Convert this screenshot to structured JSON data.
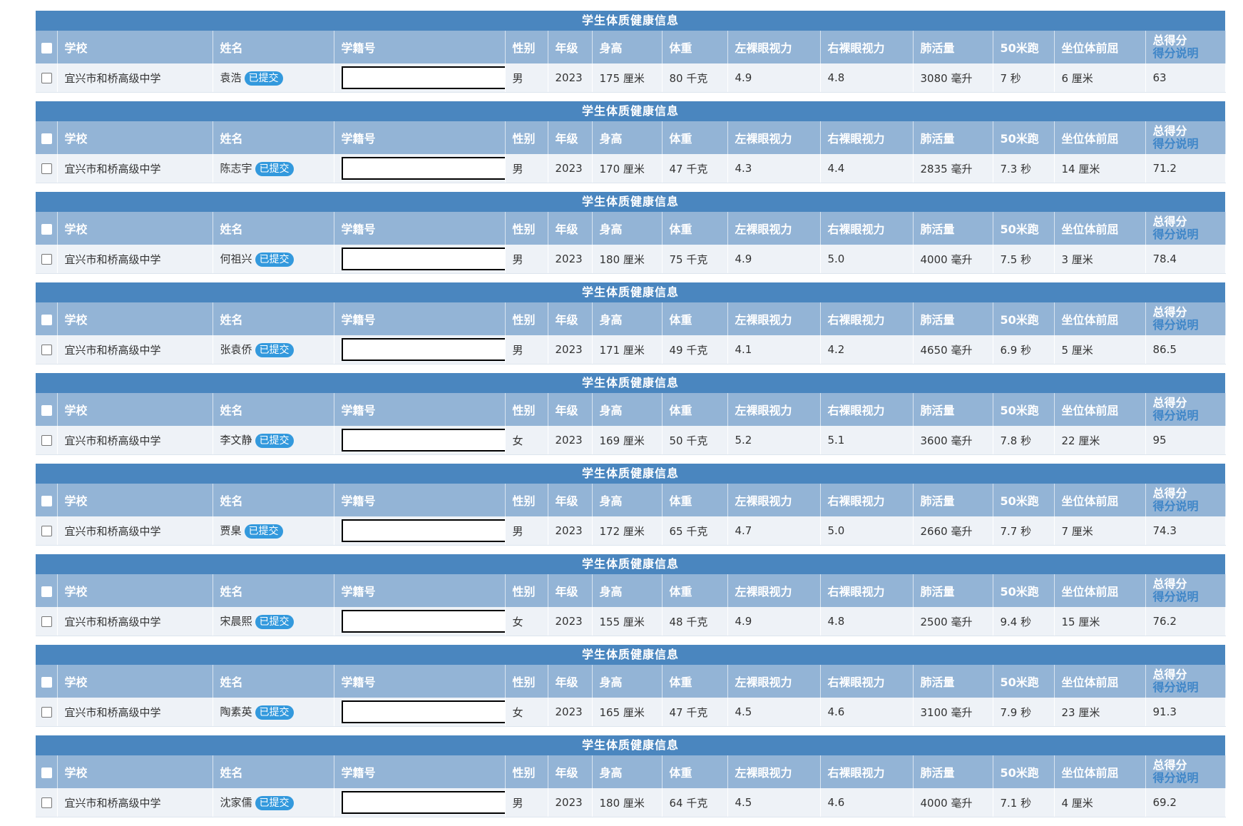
{
  "section_title": "学生体质健康信息",
  "columns": {
    "school": "学校",
    "name": "姓名",
    "student_id": "学籍号",
    "gender": "性别",
    "grade": "年级",
    "height": "身高",
    "weight": "体重",
    "left_vision": "左裸眼视力",
    "right_vision": "右裸眼视力",
    "lung_capacity": "肺活量",
    "run50": "50米跑",
    "sit_reach": "坐位体前屈",
    "total_score": "总得分",
    "score_note": "得分说明"
  },
  "status_label": "已提交",
  "students": [
    {
      "school": "宜兴市和桥高级中学",
      "name": "袁浩",
      "gender": "男",
      "grade": "2023",
      "height": "175 厘米",
      "weight": "80 千克",
      "left_vision": "4.9",
      "right_vision": "4.8",
      "lung_capacity": "3080 毫升",
      "run50": "7 秒",
      "sit_reach": "6 厘米",
      "score": "63"
    },
    {
      "school": "宜兴市和桥高级中学",
      "name": "陈志宇",
      "gender": "男",
      "grade": "2023",
      "height": "170 厘米",
      "weight": "47 千克",
      "left_vision": "4.3",
      "right_vision": "4.4",
      "lung_capacity": "2835 毫升",
      "run50": "7.3 秒",
      "sit_reach": "14 厘米",
      "score": "71.2"
    },
    {
      "school": "宜兴市和桥高级中学",
      "name": "何祖兴",
      "gender": "男",
      "grade": "2023",
      "height": "180 厘米",
      "weight": "75 千克",
      "left_vision": "4.9",
      "right_vision": "5.0",
      "lung_capacity": "4000 毫升",
      "run50": "7.5 秒",
      "sit_reach": "3 厘米",
      "score": "78.4"
    },
    {
      "school": "宜兴市和桥高级中学",
      "name": "张袁侨",
      "gender": "男",
      "grade": "2023",
      "height": "171 厘米",
      "weight": "49 千克",
      "left_vision": "4.1",
      "right_vision": "4.2",
      "lung_capacity": "4650 毫升",
      "run50": "6.9 秒",
      "sit_reach": "5 厘米",
      "score": "86.5"
    },
    {
      "school": "宜兴市和桥高级中学",
      "name": "李文静",
      "gender": "女",
      "grade": "2023",
      "height": "169 厘米",
      "weight": "50 千克",
      "left_vision": "5.2",
      "right_vision": "5.1",
      "lung_capacity": "3600 毫升",
      "run50": "7.8 秒",
      "sit_reach": "22 厘米",
      "score": "95"
    },
    {
      "school": "宜兴市和桥高级中学",
      "name": "贾臬",
      "gender": "男",
      "grade": "2023",
      "height": "172 厘米",
      "weight": "65 千克",
      "left_vision": "4.7",
      "right_vision": "5.0",
      "lung_capacity": "2660 毫升",
      "run50": "7.7 秒",
      "sit_reach": "7 厘米",
      "score": "74.3"
    },
    {
      "school": "宜兴市和桥高级中学",
      "name": "宋晨熙",
      "gender": "女",
      "grade": "2023",
      "height": "155 厘米",
      "weight": "48 千克",
      "left_vision": "4.9",
      "right_vision": "4.8",
      "lung_capacity": "2500 毫升",
      "run50": "9.4 秒",
      "sit_reach": "15 厘米",
      "score": "76.2"
    },
    {
      "school": "宜兴市和桥高级中学",
      "name": "陶素英",
      "gender": "女",
      "grade": "2023",
      "height": "165 厘米",
      "weight": "47 千克",
      "left_vision": "4.5",
      "right_vision": "4.6",
      "lung_capacity": "3100 毫升",
      "run50": "7.9 秒",
      "sit_reach": "23 厘米",
      "score": "91.3"
    },
    {
      "school": "宜兴市和桥高级中学",
      "name": "沈家儒",
      "gender": "男",
      "grade": "2023",
      "height": "180 厘米",
      "weight": "64 千克",
      "left_vision": "4.5",
      "right_vision": "4.6",
      "lung_capacity": "4000 毫升",
      "run50": "7.1 秒",
      "sit_reach": "4 厘米",
      "score": "69.2"
    }
  ],
  "colors": {
    "title_bar": "#4a86bf",
    "header_row": "#93b4d6",
    "data_row": "#eef2f7",
    "badge": "#3399dd",
    "score_note_link": "#3f86c8"
  }
}
